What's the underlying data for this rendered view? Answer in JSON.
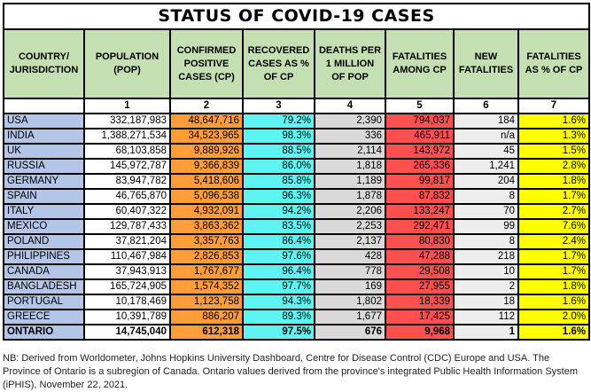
{
  "title": "STATUS OF COVID-19 CASES",
  "headers": [
    "COUNTRY/ JURISDICTION",
    "POPULATION (POP)",
    "CONFIRMED POSITIVE CASES (CP)",
    "RECOVERED CASES AS % OF CP",
    "DEATHS PER 1 MILLION OF POP",
    "FATALITIES AMONG CP",
    "NEW FATALITIES",
    "FATALITIES AS % OF CP"
  ],
  "column_numbers": [
    "",
    "1",
    "2",
    "3",
    "4",
    "5",
    "6",
    "7"
  ],
  "colors": {
    "header": "#c4dfb2",
    "country": "#b4c6e7",
    "confirmed": "#ff9d3b",
    "recovered": "#5ff4f4",
    "deaths_per_million": "#d9d9d9",
    "fatalities": "#ff5050",
    "new_fatalities": "#ededed",
    "fatality_pct": "#ffff00"
  },
  "rows": [
    [
      "USA",
      "332,187,983",
      "48,647,716",
      "79.2%",
      "2,390",
      "794,037",
      "184",
      "1.6%"
    ],
    [
      "INDIA",
      "1,388,271,534",
      "34,523,965",
      "98.3%",
      "336",
      "465,911",
      "n/a",
      "1.3%"
    ],
    [
      "UK",
      "68,103,858",
      "9,889,926",
      "88.5%",
      "2,114",
      "143,972",
      "45",
      "1.5%"
    ],
    [
      "RUSSIA",
      "145,972,787",
      "9,366,839",
      "86.0%",
      "1,818",
      "265,336",
      "1,241",
      "2.8%"
    ],
    [
      "GERMANY",
      "83,947,782",
      "5,418,606",
      "85.8%",
      "1,189",
      "99,817",
      "204",
      "1.8%"
    ],
    [
      "SPAIN",
      "46,765,870",
      "5,096,538",
      "96.3%",
      "1,878",
      "87,832",
      "8",
      "1.7%"
    ],
    [
      "ITALY",
      "60,407,322",
      "4,932,091",
      "94.2%",
      "2,206",
      "133,247",
      "70",
      "2.7%"
    ],
    [
      "MEXICO",
      "129,787,433",
      "3,863,362",
      "83.5%",
      "2,253",
      "292,471",
      "99",
      "7.6%"
    ],
    [
      "POLAND",
      "37,821,204",
      "3,357,763",
      "86.4%",
      "2,137",
      "80,830",
      "8",
      "2.4%"
    ],
    [
      "PHILIPPINES",
      "110,467,984",
      "2,826,853",
      "97.6%",
      "428",
      "47,288",
      "218",
      "1.7%"
    ],
    [
      "CANADA",
      "37,943,913",
      "1,767,677",
      "96.4%",
      "778",
      "29,508",
      "10",
      "1.7%"
    ],
    [
      "BANGLADESH",
      "165,724,905",
      "1,574,352",
      "97.7%",
      "169",
      "27,955",
      "2",
      "1.8%"
    ],
    [
      "PORTUGAL",
      "10,178,469",
      "1,123,758",
      "94.3%",
      "1,802",
      "18,339",
      "18",
      "1.6%"
    ],
    [
      "GREECE",
      "10,391,789",
      "886,207",
      "89.3%",
      "1,677",
      "17,425",
      "112",
      "2.0%"
    ],
    [
      "ONTARIO",
      "14,745,040",
      "612,318",
      "97.5%",
      "676",
      "9,968",
      "1",
      "1.6%"
    ]
  ],
  "footnote": "NB: Derived from Worldometer, Johns Hopkins University Dashboard, Centre for Disease Control (CDC) Europe and USA. The Province of Ontario is a subregion of Canada. Ontario values derived from the province's integrated Public Health Information System (iPHIS), November 22, 2021."
}
